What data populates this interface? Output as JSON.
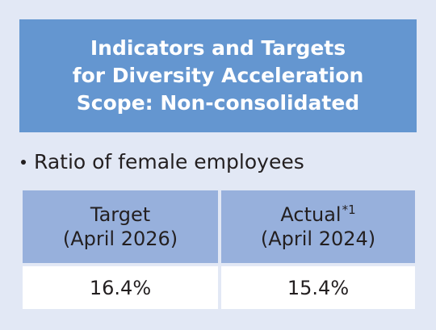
{
  "header": {
    "line1": "Indicators and Targets",
    "line2": "for Diversity Acceleration",
    "line3": "Scope: Non-consolidated"
  },
  "section": {
    "label": "Ratio of female employees"
  },
  "table": {
    "columns": [
      {
        "heading": "Target",
        "period": "(April 2026)",
        "footnote": "",
        "value": "16.4%"
      },
      {
        "heading": "Actual",
        "period": "(April 2024)",
        "footnote": "*1",
        "value": "15.4%"
      }
    ]
  },
  "colors": {
    "background": "#e2e8f5",
    "header_fill": "#6496d0",
    "table_head_fill": "#97b0dc",
    "table_value_fill": "#ffffff",
    "text": "#231f20"
  }
}
